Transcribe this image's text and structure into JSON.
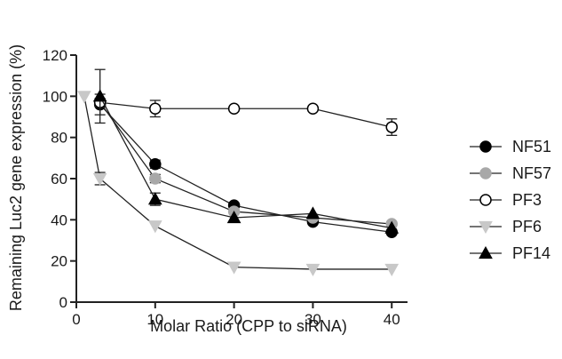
{
  "chart_data": {
    "type": "line",
    "title": "",
    "xlabel": "Molar Ratio (CPP to siRNA)",
    "ylabel": "Remaining Luc2 gene expression (%)",
    "xlim": [
      0,
      42
    ],
    "ylim": [
      0,
      120
    ],
    "xticks": [
      0,
      10,
      20,
      30,
      40
    ],
    "yticks": [
      0,
      20,
      40,
      60,
      80,
      100,
      120
    ],
    "grid": false,
    "legend_position": "right",
    "series": [
      {
        "name": "NF51",
        "marker": "filled-circle",
        "color": "#000000",
        "x": [
          3,
          10,
          20,
          30,
          40
        ],
        "y": [
          96,
          67,
          47,
          39,
          34
        ],
        "err": [
          5,
          2,
          0,
          0,
          0
        ]
      },
      {
        "name": "NF57",
        "marker": "filled-circle",
        "color": "#a8a8a8",
        "x": [
          3,
          10,
          20,
          30,
          40
        ],
        "y": [
          97,
          60,
          44,
          41,
          38
        ],
        "err": [
          0,
          2,
          0,
          0,
          0
        ]
      },
      {
        "name": "PF3",
        "marker": "open-circle",
        "color": "#000000",
        "x": [
          3,
          10,
          20,
          30,
          40
        ],
        "y": [
          97,
          94,
          94,
          94,
          85
        ],
        "err": [
          2,
          4,
          0,
          0,
          4
        ]
      },
      {
        "name": "PF6",
        "marker": "triangle-down",
        "color": "#c8c8c8",
        "x": [
          1,
          3,
          10,
          20,
          30,
          40
        ],
        "y": [
          100,
          60,
          37,
          17,
          16,
          16
        ],
        "err": [
          0,
          3,
          0,
          0,
          0,
          0
        ]
      },
      {
        "name": "PF14",
        "marker": "triangle-up",
        "color": "#000000",
        "x": [
          3,
          10,
          20,
          30,
          40
        ],
        "y": [
          100,
          50,
          41,
          43,
          36
        ],
        "err": [
          13,
          3,
          0,
          0,
          0
        ]
      }
    ]
  }
}
